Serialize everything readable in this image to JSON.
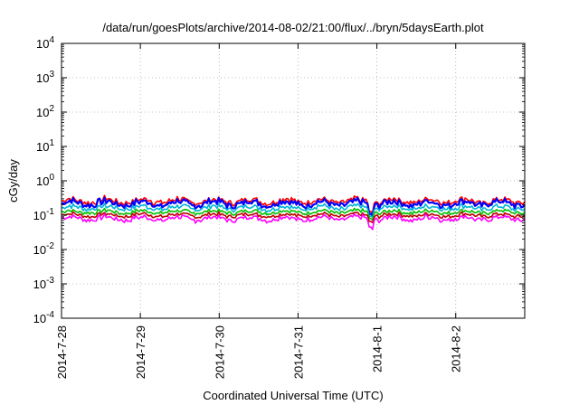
{
  "chart_data": {
    "type": "line",
    "title": "/data/run/goesPlots/archive/2014-08-02/21:00/flux/../bryn/5daysEarth.plot",
    "xlabel": "Coordinated Universal Time (UTC)",
    "ylabel": "cGy/day",
    "y_scale": "log",
    "ylim": [
      0.0001,
      10000
    ],
    "xlim": [
      "2014-07-28",
      "2014-08-02 21:00"
    ],
    "grid": true,
    "x_ticks": [
      "2014-7-28",
      "2014-7-29",
      "2014-7-30",
      "2014-7-31",
      "2014-8-1",
      "2014-8-2"
    ],
    "y_ticks": [
      {
        "mantissa": "10",
        "exp": "-4"
      },
      {
        "mantissa": "10",
        "exp": "-3"
      },
      {
        "mantissa": "10",
        "exp": "-2"
      },
      {
        "mantissa": "10",
        "exp": "-1"
      },
      {
        "mantissa": "10",
        "exp": "0"
      },
      {
        "mantissa": "10",
        "exp": "1"
      },
      {
        "mantissa": "10",
        "exp": "2"
      },
      {
        "mantissa": "10",
        "exp": "3"
      },
      {
        "mantissa": "10",
        "exp": "4"
      }
    ],
    "series": [
      {
        "color": "#ff0000",
        "base": 0.26,
        "amp": 1.35
      },
      {
        "color": "#0000ff",
        "base": 0.22,
        "amp": 1.4
      },
      {
        "color": "#00b4d8",
        "base": 0.165,
        "amp": 1.3
      },
      {
        "color": "#00c000",
        "base": 0.125,
        "amp": 1.22
      },
      {
        "color": "#c00000",
        "base": 0.1,
        "amp": 1.22
      },
      {
        "color": "#ff00ff",
        "base": 0.08,
        "amp": 1.3
      }
    ]
  }
}
